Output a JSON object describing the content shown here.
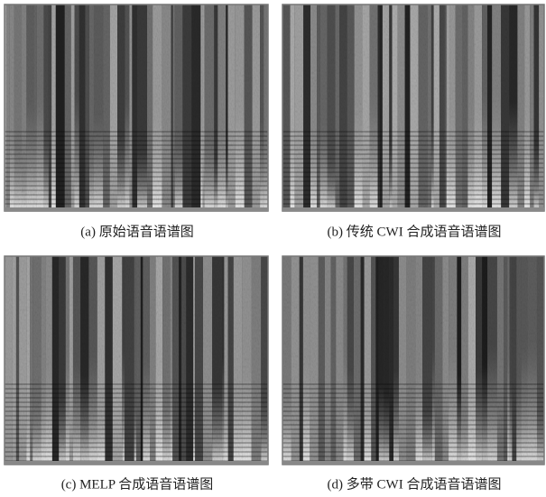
{
  "panels": [
    {
      "caption": "(a) 原始语音语谱图"
    },
    {
      "caption": "(b) 传统 CWI 合成语音语谱图"
    },
    {
      "caption": "(c) MELP 合成语音语谱图"
    },
    {
      "caption": "(d) 多带 CWI 合成语音语谱图"
    }
  ]
}
